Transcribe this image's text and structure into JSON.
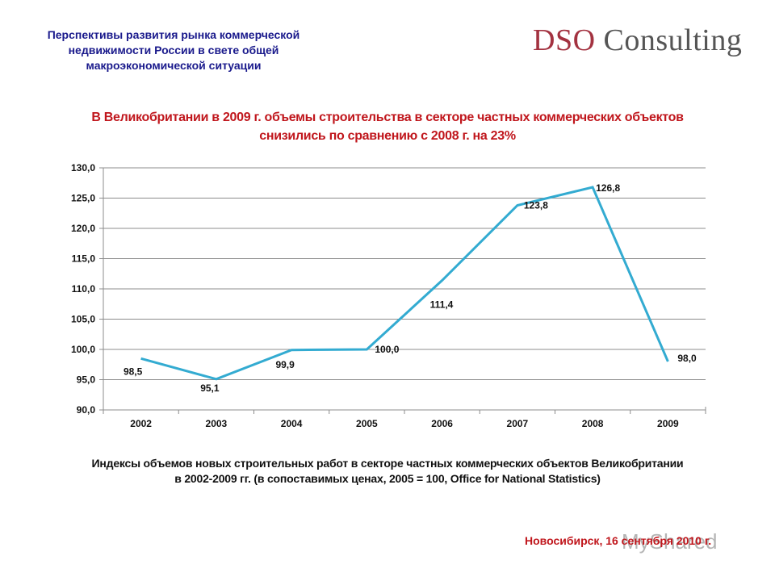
{
  "header": {
    "title_lines": [
      "Перспективы развития рынка коммерческой",
      "недвижимости России в свете общей",
      "макроэкономической ситуации"
    ],
    "logo_part1": "DSO",
    "logo_part2": " Consulting"
  },
  "headline": {
    "line1": "В Великобритании в 2009 г. объемы строительства в секторе частных коммерческих объектов",
    "line2": "снизились по сравнению с 2008 г. на 23%"
  },
  "caption": {
    "line1": "Индексы объемов новых строительных работ в секторе частных коммерческих объектов  Великобритании",
    "line2": "в 2002-2009 гг. (в сопоставимых ценах, 2005 = 100, Office  for National Statistics)"
  },
  "footer": {
    "text": "Новосибирск, 16 сентября 2010 г.",
    "watermark": "MyShared"
  },
  "colors": {
    "line": "#33abd1",
    "grid": "#8c8c8c",
    "headline": "#c0161c",
    "header": "#1a1a8c"
  },
  "chart_data": {
    "type": "line",
    "title": "В Великобритании в 2009 г. объемы строительства в секторе частных коммерческих объектов снизились по сравнению с 2008 г. на 23%",
    "categories": [
      "2002",
      "2003",
      "2004",
      "2005",
      "2006",
      "2007",
      "2008",
      "2009"
    ],
    "values": [
      98.5,
      95.1,
      99.9,
      100.0,
      111.4,
      123.8,
      126.8,
      98.0
    ],
    "labels": [
      "98,5",
      "95,1",
      "99,9",
      "100,0",
      "111,4",
      "123,8",
      "126,8",
      "98,0"
    ],
    "yticks": [
      "90,0",
      "95,0",
      "100,0",
      "105,0",
      "110,0",
      "115,0",
      "120,0",
      "125,0",
      "130,0"
    ],
    "ylim": [
      90,
      130
    ],
    "xlabel": "",
    "ylabel": "",
    "grid": true,
    "legend": "none"
  }
}
